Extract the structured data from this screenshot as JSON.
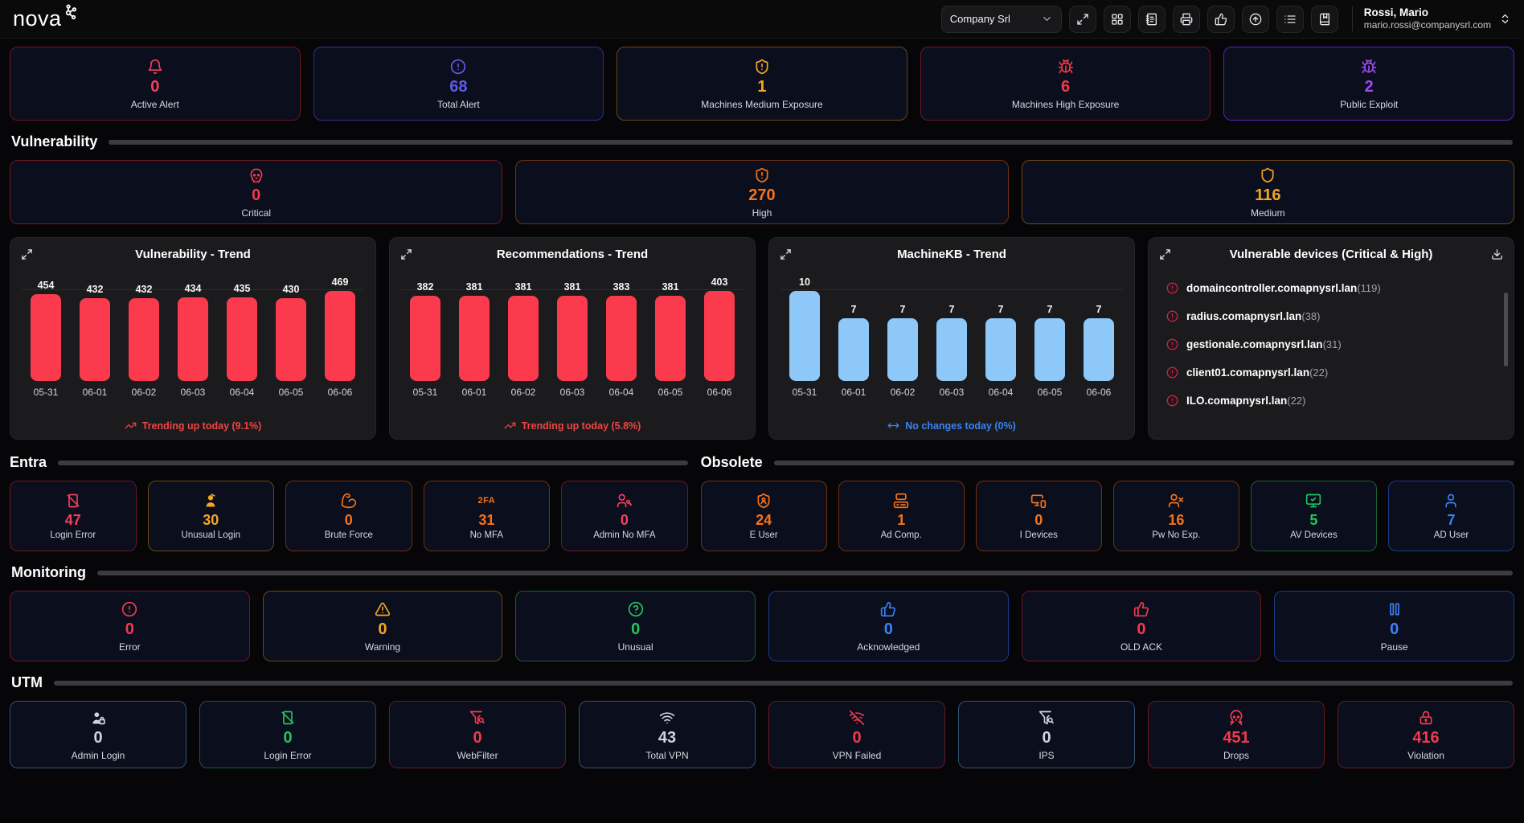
{
  "header": {
    "logo_text": "nova",
    "company_select": {
      "value": "Company Srl"
    },
    "toolbar": [
      {
        "icon": "expand-icon"
      },
      {
        "icon": "grid-icon"
      },
      {
        "icon": "notebook-icon"
      },
      {
        "icon": "printer-icon"
      },
      {
        "icon": "thumbs-up-icon"
      },
      {
        "icon": "circle-arrow-up-icon"
      },
      {
        "icon": "list-icon"
      },
      {
        "icon": "book-icon"
      }
    ],
    "user": {
      "name": "Rossi, Mario",
      "email": "mario.rossi@companysrl.com"
    }
  },
  "top_stats": [
    {
      "value": "0",
      "label": "Active Alert",
      "icon": "bell-icon",
      "color": "#f43f5e",
      "border": "#6e1626"
    },
    {
      "value": "68",
      "label": "Total Alert",
      "icon": "alert-circle-icon",
      "color": "#5d5ce6",
      "border": "#32328c"
    },
    {
      "value": "1",
      "label": "Machines Medium Exposure",
      "icon": "shield-alert-icon",
      "color": "#f5a623",
      "border": "#6e4712"
    },
    {
      "value": "6",
      "label": "Machines High Exposure",
      "icon": "mite-icon",
      "color": "#f23a4c",
      "border": "#6e1a22"
    },
    {
      "value": "2",
      "label": "Public Exploit",
      "icon": "bug-icon",
      "color": "#9d4df0",
      "border": "#5b21b6"
    }
  ],
  "vulnerability": {
    "title": "Vulnerability",
    "cards": [
      {
        "value": "0",
        "label": "Critical",
        "icon": "skull-icon",
        "color": "#f23a4c",
        "border": "#6e1a22"
      },
      {
        "value": "270",
        "label": "High",
        "icon": "shield-alert-icon",
        "color": "#f97316",
        "border": "#713012"
      },
      {
        "value": "116",
        "label": "Medium",
        "icon": "shield-icon",
        "color": "#f5a623",
        "border": "#6e4712"
      }
    ]
  },
  "chart_data": [
    {
      "type": "bar",
      "title": "Vulnerability - Trend",
      "categories": [
        "05-31",
        "06-01",
        "06-02",
        "06-03",
        "06-04",
        "06-05",
        "06-06"
      ],
      "values": [
        454,
        432,
        432,
        434,
        435,
        430,
        469
      ],
      "bar_color": "#fb3a4e",
      "ylim": [
        0,
        469
      ],
      "grid": false,
      "legend": "none",
      "footer": "Trending up today (9.1%)",
      "footer_icon": "trending-up-icon",
      "footer_color": "#ef4444"
    },
    {
      "type": "bar",
      "title": "Recommendations - Trend",
      "categories": [
        "05-31",
        "06-01",
        "06-02",
        "06-03",
        "06-04",
        "06-05",
        "06-06"
      ],
      "values": [
        382,
        381,
        381,
        381,
        383,
        381,
        403
      ],
      "bar_color": "#fb3a4e",
      "ylim": [
        0,
        403
      ],
      "grid": false,
      "legend": "none",
      "footer": "Trending up today (5.8%)",
      "footer_icon": "trending-up-icon",
      "footer_color": "#ef4444"
    },
    {
      "type": "bar",
      "title": "MachineKB - Trend",
      "categories": [
        "05-31",
        "06-01",
        "06-02",
        "06-03",
        "06-04",
        "06-05",
        "06-06"
      ],
      "values": [
        10,
        7,
        7,
        7,
        7,
        7,
        7
      ],
      "bar_color": "#8ec8f9",
      "ylim": [
        0,
        10
      ],
      "grid": false,
      "legend": "none",
      "footer": "No changes today (0%)",
      "footer_icon": "arrows-left-right-icon",
      "footer_color": "#3b82f6"
    }
  ],
  "vulnerable_devices": {
    "title": "Vulnerable devices (Critical & High)",
    "items": [
      {
        "name": "domaincontroller.comapnysrl.lan",
        "count": "(119)"
      },
      {
        "name": "radius.comapnysrl.lan",
        "count": "(38)"
      },
      {
        "name": "gestionale.comapnysrl.lan",
        "count": "(31)"
      },
      {
        "name": "client01.comapnysrl.lan",
        "count": "(22)"
      },
      {
        "name": "ILO.comapnysrl.lan",
        "count": "(22)"
      }
    ]
  },
  "entra": {
    "title": "Entra",
    "cards": [
      {
        "value": "47",
        "label": "Login Error",
        "icon": "login-slash-icon",
        "color": "#f43f5e",
        "border": "#6e1626"
      },
      {
        "value": "30",
        "label": "Unusual Login",
        "icon": "user-alert-icon",
        "color": "#f5a623",
        "border": "#6e4712"
      },
      {
        "value": "0",
        "label": "Brute Force",
        "icon": "biceps-icon",
        "color": "#f97316",
        "border": "#713012"
      },
      {
        "value": "31",
        "label": "No MFA",
        "icon": "badge-2fa-icon",
        "color": "#f97316",
        "border": "#713012"
      },
      {
        "value": "0",
        "label": "Admin No MFA",
        "icon": "user-key-icon",
        "color": "#f43f5e",
        "border": "#6e1626"
      }
    ]
  },
  "obsolete": {
    "title": "Obsolete",
    "cards": [
      {
        "value": "24",
        "label": "E User",
        "icon": "shield-user-icon",
        "color": "#f97316",
        "border": "#713012"
      },
      {
        "value": "1",
        "label": "Ad Comp.",
        "icon": "computer-icon",
        "color": "#f97316",
        "border": "#713012"
      },
      {
        "value": "0",
        "label": "I Devices",
        "icon": "devices-icon",
        "color": "#f97316",
        "border": "#713012"
      },
      {
        "value": "16",
        "label": "Pw No Exp.",
        "icon": "user-x-icon",
        "color": "#f97316",
        "border": "#713012"
      },
      {
        "value": "5",
        "label": "AV Devices",
        "icon": "monitor-check-icon",
        "color": "#22c55e",
        "border": "#1a5c33"
      },
      {
        "value": "7",
        "label": "AD User",
        "icon": "user-icon",
        "color": "#3b82f6",
        "border": "#1e3a8a"
      }
    ]
  },
  "monitoring": {
    "title": "Monitoring",
    "cards": [
      {
        "value": "0",
        "label": "Error",
        "icon": "alert-circle-icon",
        "color": "#f23a4c",
        "border": "#6e1626"
      },
      {
        "value": "0",
        "label": "Warning",
        "icon": "alert-triangle-icon",
        "color": "#f5a623",
        "border": "#6e4712"
      },
      {
        "value": "0",
        "label": "Unusual",
        "icon": "help-circle-icon",
        "color": "#22c55e",
        "border": "#1a5c33"
      },
      {
        "value": "0",
        "label": "Acknowledged",
        "icon": "thumbs-up-icon",
        "color": "#3b82f6",
        "border": "#1e3a8a"
      },
      {
        "value": "0",
        "label": "OLD ACK",
        "icon": "thumbs-up-icon",
        "color": "#f23a4c",
        "border": "#6e1626"
      },
      {
        "value": "0",
        "label": "Pause",
        "icon": "pause-icon",
        "color": "#3b82f6",
        "border": "#1e3a8a"
      }
    ]
  },
  "utm": {
    "title": "UTM",
    "cards": [
      {
        "value": "0",
        "label": "Admin Login",
        "icon": "user-lock-icon",
        "color": "#cbd5e1",
        "border": "#33516e"
      },
      {
        "value": "0",
        "label": "Login Error",
        "icon": "login-slash-icon",
        "color": "#22c55e",
        "border": "#1a5c33"
      },
      {
        "value": "0",
        "label": "WebFilter",
        "icon": "funnel-search-icon",
        "color": "#f23a4c",
        "border": "#6e1626"
      },
      {
        "value": "43",
        "label": "Total VPN",
        "icon": "wifi-icon",
        "color": "#cbd5e1",
        "border": "#33516e"
      },
      {
        "value": "0",
        "label": "VPN Failed",
        "icon": "wifi-off-icon",
        "color": "#f23a4c",
        "border": "#6e1626"
      },
      {
        "value": "0",
        "label": "IPS",
        "icon": "funnel-search-icon",
        "color": "#cbd5e1",
        "border": "#33516e"
      },
      {
        "value": "451",
        "label": "Drops",
        "icon": "skull-crossbones-icon",
        "color": "#f23a4c",
        "border": "#6e1626"
      },
      {
        "value": "416",
        "label": "Violation",
        "icon": "lock-icon",
        "color": "#f23a4c",
        "border": "#6e1626"
      }
    ]
  }
}
